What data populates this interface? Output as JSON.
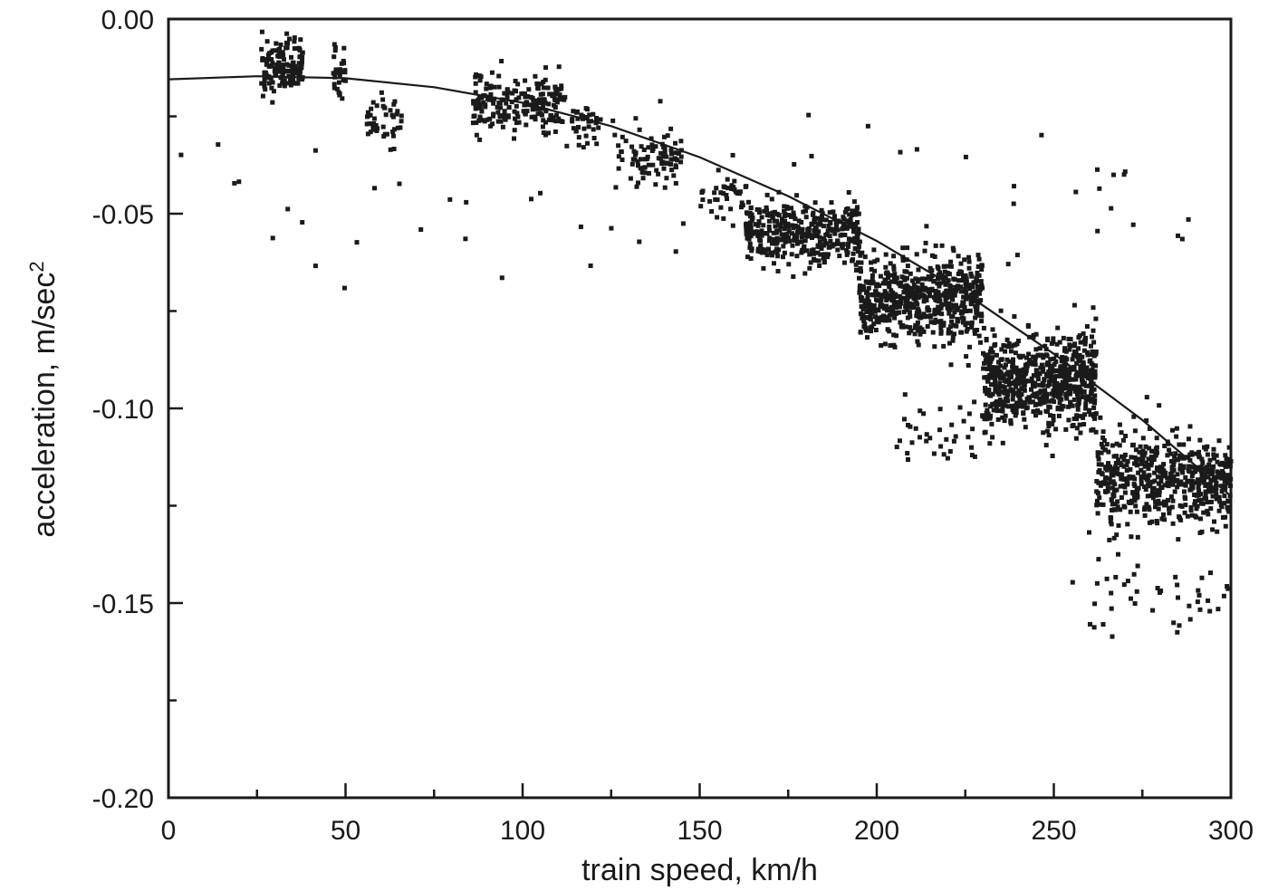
{
  "chart_data": {
    "type": "scatter",
    "title": "",
    "xlabel": "train speed, km/h",
    "ylabel_base": "acceleration, m/sec",
    "ylabel_superscript": "2",
    "xlim": [
      0,
      300
    ],
    "ylim": [
      -0.2,
      0.0
    ],
    "x_major_ticks": [
      0,
      50,
      100,
      150,
      200,
      250,
      300
    ],
    "x_tick_labels": [
      "0",
      "50",
      "100",
      "150",
      "200",
      "250",
      "300"
    ],
    "x_minor_ticks": [
      25,
      75,
      125,
      175,
      225,
      275
    ],
    "y_major_ticks": [
      0.0,
      -0.05,
      -0.1,
      -0.15,
      -0.2
    ],
    "y_tick_labels": [
      "0.00",
      "-0.05",
      "-0.10",
      "-0.15",
      "-0.20"
    ],
    "y_minor_ticks": [
      -0.025,
      -0.075,
      -0.125,
      -0.175
    ],
    "grid": false,
    "legend": "none",
    "marker_color": "#1a1a1a",
    "line_color": "#1a1a1a",
    "fit_curve": {
      "form": "quadratic",
      "x": [
        0,
        25,
        50,
        75,
        100,
        125,
        150,
        175,
        200,
        225,
        250,
        275,
        300
      ],
      "y": [
        -0.0155,
        -0.0147,
        -0.0152,
        -0.0175,
        -0.0215,
        -0.0275,
        -0.0355,
        -0.0455,
        -0.057,
        -0.0705,
        -0.086,
        -0.103,
        -0.1225
      ]
    },
    "clusters": [
      {
        "x": [
          26,
          38
        ],
        "y_center": -0.012,
        "y_spread": 0.006,
        "count": 140
      },
      {
        "x": [
          46,
          50
        ],
        "y_center": -0.015,
        "y_spread": 0.006,
        "count": 30
      },
      {
        "x": [
          56,
          66
        ],
        "y_center": -0.026,
        "y_spread": 0.005,
        "count": 45
      },
      {
        "x": [
          86,
          112
        ],
        "y_center": -0.022,
        "y_spread": 0.006,
        "count": 220
      },
      {
        "x": [
          112,
          122
        ],
        "y_center": -0.028,
        "y_spread": 0.005,
        "count": 35
      },
      {
        "x": [
          126,
          145
        ],
        "y_center": -0.036,
        "y_spread": 0.006,
        "count": 90
      },
      {
        "x": [
          150,
          165
        ],
        "y_center": -0.045,
        "y_spread": 0.005,
        "count": 40
      },
      {
        "x": [
          163,
          195
        ],
        "y_center": -0.055,
        "y_spread": 0.007,
        "count": 380
      },
      {
        "x": [
          195,
          230
        ],
        "y_center": -0.072,
        "y_spread": 0.009,
        "count": 600
      },
      {
        "x": [
          230,
          262
        ],
        "y_center": -0.093,
        "y_spread": 0.01,
        "count": 700
      },
      {
        "x": [
          262,
          300
        ],
        "y_center": -0.118,
        "y_spread": 0.01,
        "count": 560
      },
      {
        "x": [
          255,
          300
        ],
        "y_center": -0.148,
        "y_spread": 0.008,
        "count": 45
      },
      {
        "x": [
          205,
          232
        ],
        "y_center": -0.106,
        "y_spread": 0.007,
        "count": 40
      },
      {
        "x": [
          0,
          300
        ],
        "y_center": -0.045,
        "y_spread": 0.02,
        "count": 60
      }
    ]
  }
}
